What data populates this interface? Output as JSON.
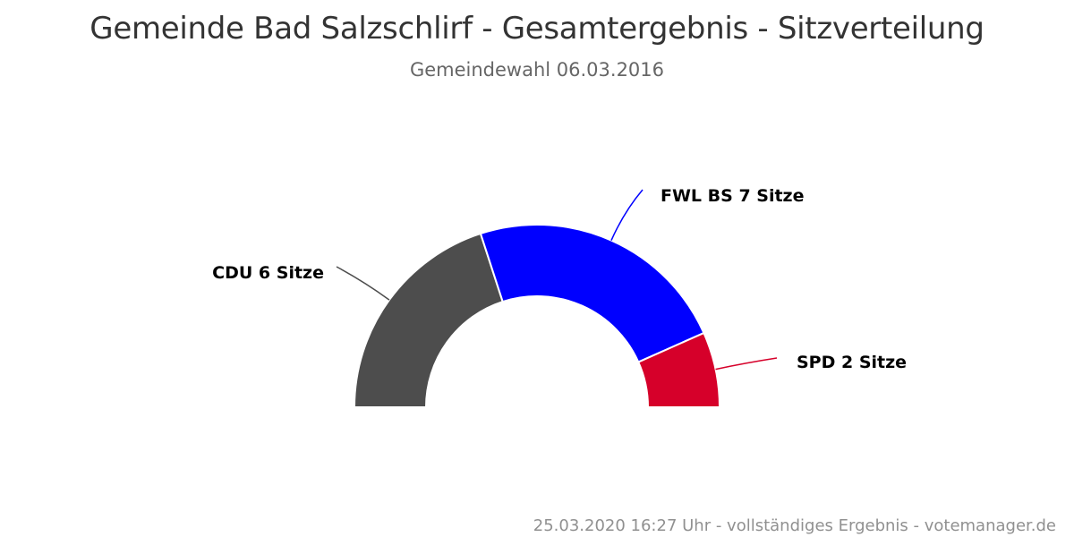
{
  "header": {
    "title": "Gemeinde Bad Salzschlirf - Gesamtergebnis - Sitzverteilung",
    "subtitle": "Gemeindewahl 06.03.2016"
  },
  "footer": {
    "credits": "25.03.2020 16:27 Uhr - vollständiges Ergebnis - votemanager.de"
  },
  "chart_data": {
    "type": "pie",
    "variant": "semi-circle donut (parliament seat distribution)",
    "title": "Gemeinde Bad Salzschlirf - Gesamtergebnis - Sitzverteilung",
    "subtitle": "Gemeindewahl 06.03.2016",
    "categories": [
      "CDU",
      "FWL BS",
      "SPD"
    ],
    "values": [
      6,
      7,
      2
    ],
    "total": 15,
    "unit": "Sitze",
    "colors": [
      "#4d4d4d",
      "#0000ff",
      "#d6002a"
    ],
    "labels": [
      "CDU 6 Sitze",
      "FWL BS 7 Sitze",
      "SPD 2 Sitze"
    ],
    "legend": "none (data labels with connectors)"
  }
}
